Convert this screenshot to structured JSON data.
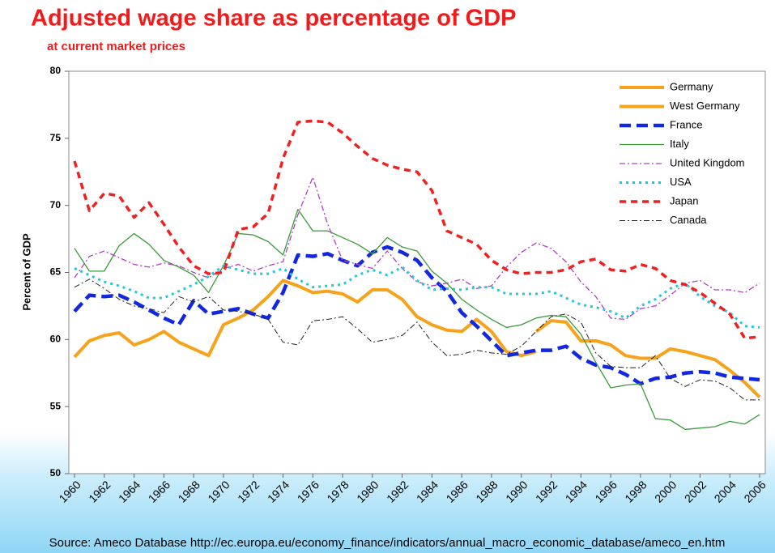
{
  "chart_data": {
    "type": "line",
    "title": "Adjusted wage share as percentage of GDP",
    "subtitle": "at current market prices",
    "y_label": "Percent of GDP",
    "source": "Source: Ameco Database http://ec.europa.eu/economy_finance/indicators/annual_macro_economic_database/ameco_en.htm",
    "x": [
      1960,
      1961,
      1962,
      1963,
      1964,
      1965,
      1966,
      1967,
      1968,
      1969,
      1970,
      1971,
      1972,
      1973,
      1974,
      1975,
      1976,
      1977,
      1978,
      1979,
      1980,
      1981,
      1982,
      1983,
      1984,
      1985,
      1986,
      1987,
      1988,
      1989,
      1990,
      1991,
      1992,
      1993,
      1994,
      1995,
      1996,
      1997,
      1998,
      1999,
      2000,
      2001,
      2002,
      2003,
      2004,
      2005,
      2006
    ],
    "xlim": [
      1960,
      2006
    ],
    "xticks": [
      1960,
      1962,
      1964,
      1966,
      1968,
      1970,
      1972,
      1974,
      1976,
      1978,
      1980,
      1982,
      1984,
      1986,
      1988,
      1990,
      1992,
      1994,
      1996,
      1998,
      2000,
      2002,
      2004,
      2006
    ],
    "ylim": [
      50,
      80
    ],
    "yticks": [
      50,
      55,
      60,
      65,
      70,
      75,
      80
    ],
    "legend": "top-right",
    "series": [
      {
        "name": "Germany",
        "color": "#f7a21b",
        "style": "thick-solid",
        "values": [
          null,
          null,
          null,
          null,
          null,
          null,
          null,
          null,
          null,
          null,
          null,
          null,
          null,
          null,
          null,
          null,
          null,
          null,
          null,
          null,
          null,
          null,
          null,
          null,
          null,
          null,
          null,
          null,
          null,
          null,
          null,
          60.6,
          61.4,
          61.3,
          59.9,
          59.9,
          59.6,
          58.8,
          58.6,
          58.6,
          59.3,
          59.1,
          58.8,
          58.5,
          57.7,
          56.8,
          55.7
        ]
      },
      {
        "name": "West Germany",
        "color": "#f7a21b",
        "style": "thick-solid",
        "values": [
          58.7,
          59.9,
          60.3,
          60.5,
          59.6,
          60.0,
          60.6,
          59.8,
          59.3,
          58.8,
          61.1,
          61.6,
          62.2,
          63.2,
          64.4,
          64.0,
          63.5,
          63.6,
          63.4,
          62.8,
          63.7,
          63.7,
          63.0,
          61.7,
          61.1,
          60.7,
          60.6,
          61.5,
          60.6,
          59.1,
          58.8,
          59.1,
          null,
          null,
          null,
          null,
          null,
          null,
          null,
          null,
          null,
          null,
          null,
          null,
          null,
          null,
          null
        ]
      },
      {
        "name": "France",
        "color": "#1228e0",
        "style": "thick-dash",
        "values": [
          62.1,
          63.3,
          63.2,
          63.3,
          62.8,
          62.2,
          61.6,
          61.1,
          62.9,
          61.9,
          62.1,
          62.3,
          61.9,
          61.6,
          63.5,
          66.3,
          66.2,
          66.4,
          65.9,
          65.5,
          66.5,
          66.9,
          66.5,
          65.9,
          64.6,
          63.6,
          62.0,
          61.0,
          59.9,
          58.8,
          59.0,
          59.2,
          59.2,
          59.5,
          58.6,
          58.1,
          57.9,
          57.4,
          56.7,
          57.1,
          57.2,
          57.5,
          57.6,
          57.5,
          57.2,
          57.1,
          57.0
        ]
      },
      {
        "name": "Italy",
        "color": "#3a9a3a",
        "style": "solid",
        "values": [
          66.8,
          65.1,
          65.1,
          67.0,
          67.9,
          67.1,
          65.9,
          65.4,
          64.8,
          63.5,
          65.5,
          67.9,
          67.8,
          67.3,
          66.3,
          69.7,
          68.1,
          68.1,
          67.6,
          67.1,
          66.4,
          67.6,
          66.9,
          66.6,
          65.1,
          64.2,
          63.0,
          62.2,
          61.5,
          60.9,
          61.1,
          61.6,
          61.8,
          61.7,
          60.4,
          58.3,
          56.4,
          56.6,
          56.7,
          54.1,
          54.0,
          53.3,
          53.4,
          53.5,
          53.9,
          53.7,
          54.4
        ]
      },
      {
        "name": "United Kingdom",
        "color": "#b040c0",
        "style": "dashdot",
        "values": [
          64.6,
          66.2,
          66.6,
          66.1,
          65.6,
          65.4,
          65.7,
          65.5,
          65.0,
          64.6,
          65.3,
          65.6,
          65.1,
          65.5,
          65.8,
          69.3,
          72.1,
          68.6,
          65.9,
          65.6,
          65.3,
          66.6,
          65.3,
          64.3,
          64.0,
          64.2,
          64.5,
          63.8,
          64.0,
          65.4,
          66.5,
          67.2,
          66.8,
          65.8,
          64.3,
          63.2,
          61.6,
          61.5,
          62.3,
          62.5,
          63.3,
          64.2,
          64.4,
          63.7,
          63.7,
          63.5,
          64.2
        ]
      },
      {
        "name": "USA",
        "color": "#22c8d8",
        "style": "dot",
        "values": [
          65.3,
          64.8,
          64.3,
          64.0,
          63.6,
          63.1,
          63.1,
          63.6,
          64.1,
          64.7,
          65.5,
          65.2,
          64.9,
          64.9,
          65.3,
          64.5,
          63.9,
          64.0,
          64.1,
          64.8,
          65.2,
          64.8,
          65.4,
          64.4,
          63.7,
          63.8,
          63.7,
          63.9,
          63.9,
          63.4,
          63.4,
          63.4,
          63.6,
          63.1,
          62.6,
          62.4,
          62.1,
          61.6,
          62.5,
          63.0,
          63.8,
          64.2,
          63.2,
          62.5,
          62.0,
          61.0,
          60.9
        ]
      },
      {
        "name": "Japan",
        "color": "#f02020",
        "style": "dash",
        "values": [
          73.3,
          69.6,
          70.9,
          70.7,
          69.1,
          70.2,
          68.6,
          66.9,
          65.5,
          64.9,
          65.0,
          68.2,
          68.4,
          69.4,
          73.5,
          76.2,
          76.3,
          76.2,
          75.4,
          74.4,
          73.5,
          73.0,
          72.7,
          72.5,
          71.1,
          68.1,
          67.6,
          67.1,
          65.9,
          65.2,
          64.9,
          65.0,
          65.0,
          65.2,
          65.8,
          66.0,
          65.2,
          65.1,
          65.6,
          65.3,
          64.4,
          64.1,
          63.5,
          62.7,
          61.9,
          60.1,
          60.2
        ]
      },
      {
        "name": "Canada",
        "color": "#222222",
        "style": "thin-dashdot",
        "values": [
          63.9,
          64.5,
          63.8,
          63.0,
          62.5,
          62.3,
          62.0,
          63.2,
          62.8,
          63.2,
          62.2,
          62.1,
          61.9,
          61.5,
          59.8,
          59.6,
          61.4,
          61.5,
          61.7,
          60.8,
          59.8,
          60.0,
          60.3,
          61.3,
          59.8,
          58.8,
          58.9,
          59.2,
          59.0,
          58.9,
          59.5,
          60.6,
          61.7,
          61.9,
          61.3,
          59.0,
          58.0,
          57.9,
          57.9,
          58.8,
          57.1,
          56.5,
          57.0,
          56.9,
          56.4,
          55.5,
          55.5
        ]
      }
    ]
  }
}
